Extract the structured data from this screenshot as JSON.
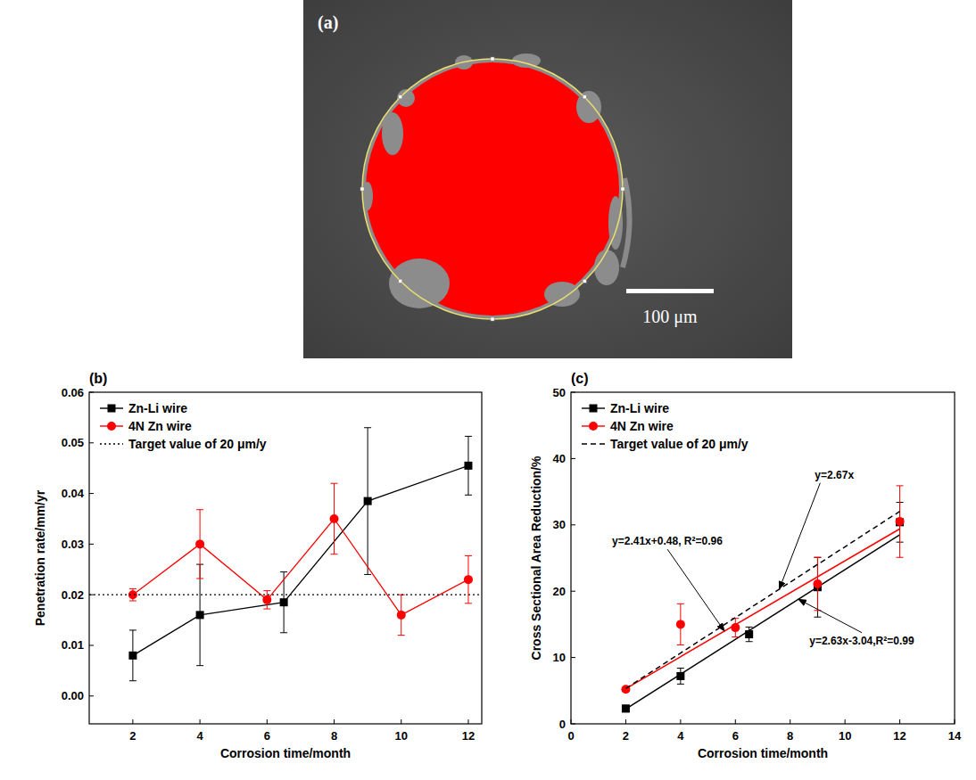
{
  "image": {
    "label": "(a)",
    "scale_bar": "100 μm"
  },
  "chart_data": [
    {
      "type": "line",
      "title": "(b)",
      "x_label": "Corrosion time/month",
      "y_label": "Penetration rate/mm/yr",
      "xlim": [
        0.7,
        12.4
      ],
      "xticks": [
        2,
        4,
        6,
        8,
        10,
        12
      ],
      "ylim": [
        -0.0055,
        0.06
      ],
      "yticks": [
        {
          "value": 0,
          "label": "0.00"
        },
        {
          "value": 0.01,
          "label": "0.01"
        },
        {
          "value": 0.02,
          "label": "0.02"
        },
        {
          "value": 0.03,
          "label": "0.03"
        },
        {
          "value": 0.04,
          "label": "0.04"
        },
        {
          "value": 0.05,
          "label": "0.05"
        },
        {
          "value": 0.06,
          "label": "0.06"
        }
      ],
      "legend": "upper left",
      "grid": false,
      "series": [
        {
          "name": "Zn-Li wire",
          "color": "#000000",
          "marker": "square",
          "line_style": "solid",
          "x": [
            2,
            4,
            6.5,
            9,
            12
          ],
          "values": [
            0.008,
            0.016,
            0.0185,
            0.0385,
            0.0455
          ],
          "errors": [
            0.005,
            0.01,
            0.006,
            0.0145,
            0.0058
          ]
        },
        {
          "name": "4N Zn wire",
          "color": "#ff0000",
          "marker": "circle",
          "line_style": "solid",
          "x": [
            2,
            4,
            6,
            8,
            10,
            12
          ],
          "values": [
            0.02,
            0.03,
            0.019,
            0.035,
            0.016,
            0.023
          ],
          "errors": [
            0.0012,
            0.0068,
            0.0018,
            0.007,
            0.004,
            0.0047
          ]
        },
        {
          "name": "Target value of 20 μm/y",
          "type": "hline",
          "color": "#000000",
          "line_style": "dotted",
          "values": [
            0.02
          ]
        }
      ]
    },
    {
      "type": "scatter",
      "title": "(c)",
      "x_label": "Corrosion time/month",
      "y_label": "Cross Sectional Area Reduction/%",
      "xlim": [
        0,
        14
      ],
      "xticks": [
        0,
        2,
        4,
        6,
        8,
        10,
        12,
        14
      ],
      "ylim": [
        0,
        50
      ],
      "yticks": [
        0,
        10,
        20,
        30,
        40,
        50
      ],
      "legend": "upper left",
      "grid": false,
      "series": [
        {
          "name": "Zn-Li wire",
          "color": "#000000",
          "marker": "square",
          "x": [
            2,
            4,
            6.5,
            9,
            12
          ],
          "values": [
            2.3,
            7.2,
            13.5,
            20.6,
            30.4
          ],
          "errors": [
            0.5,
            1.2,
            1.1,
            4.5,
            3.0
          ],
          "fit": {
            "x": [
              2,
              12
            ],
            "values": [
              2.22,
              28.52
            ],
            "label": "y=2.63x-3.04,R²=0.99"
          }
        },
        {
          "name": "4N Zn wire",
          "color": "#ff0000",
          "marker": "circle",
          "x": [
            2,
            4,
            6,
            9,
            12
          ],
          "values": [
            5.2,
            15,
            14.5,
            21.1,
            30.5
          ],
          "errors": [
            0.3,
            3.1,
            1.4,
            4.0,
            5.4
          ],
          "fit": {
            "x": [
              2,
              12
            ],
            "values": [
              5.3,
              29.4
            ],
            "label": "y=2.41x+0.48, R²=0.96"
          }
        },
        {
          "name": "Target value of 20 μm/y",
          "type": "line",
          "color": "#000000",
          "line_style": "dashed",
          "marker": "none",
          "x": [
            2,
            12
          ],
          "values": [
            5.34,
            32.04
          ],
          "label": "y=2.67x"
        }
      ]
    }
  ]
}
